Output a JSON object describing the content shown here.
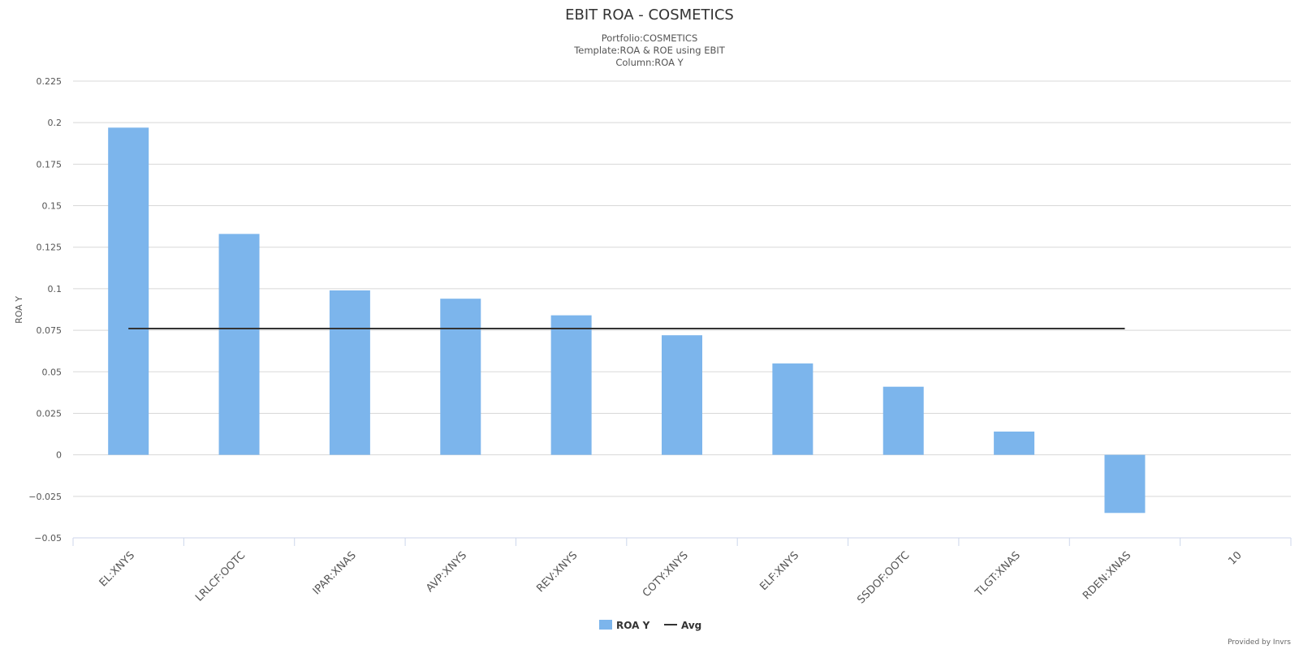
{
  "chart_data": {
    "type": "bar",
    "title": "EBIT ROA - COSMETICS",
    "subtitle_lines": [
      "Portfolio:COSMETICS",
      "Template:ROA & ROE using EBIT",
      "Column:ROA Y"
    ],
    "ylabel": "ROA Y",
    "xlabel": "",
    "categories": [
      "EL:XNYS",
      "LRLCF:OOTC",
      "IPAR:XNAS",
      "AVP:XNYS",
      "REV:XNYS",
      "COTY:XNYS",
      "ELF:XNYS",
      "SSDOF:OOTC",
      "TLGT:XNAS",
      "RDEN:XNAS",
      "10"
    ],
    "series": [
      {
        "name": "ROA Y",
        "type": "bar",
        "color": "#7cb5ec",
        "values": [
          0.197,
          0.133,
          0.099,
          0.094,
          0.084,
          0.072,
          0.055,
          0.041,
          0.014,
          -0.035,
          null
        ]
      },
      {
        "name": "Avg",
        "type": "line",
        "color": "#333333",
        "value": 0.076,
        "from_category": 0,
        "to_category": 9
      }
    ],
    "ylim": [
      -0.05,
      0.225
    ],
    "yticks": [
      "−0.05",
      "−0.025",
      "0",
      "0.025",
      "0.05",
      "0.075",
      "0.1",
      "0.125",
      "0.15",
      "0.175",
      "0.2",
      "0.225"
    ],
    "ytick_values": [
      -0.05,
      -0.025,
      0,
      0.025,
      0.05,
      0.075,
      0.1,
      0.125,
      0.15,
      0.175,
      0.2,
      0.225
    ],
    "grid": true,
    "legend": "bottom-center",
    "credit": "Provided by Invrs"
  }
}
